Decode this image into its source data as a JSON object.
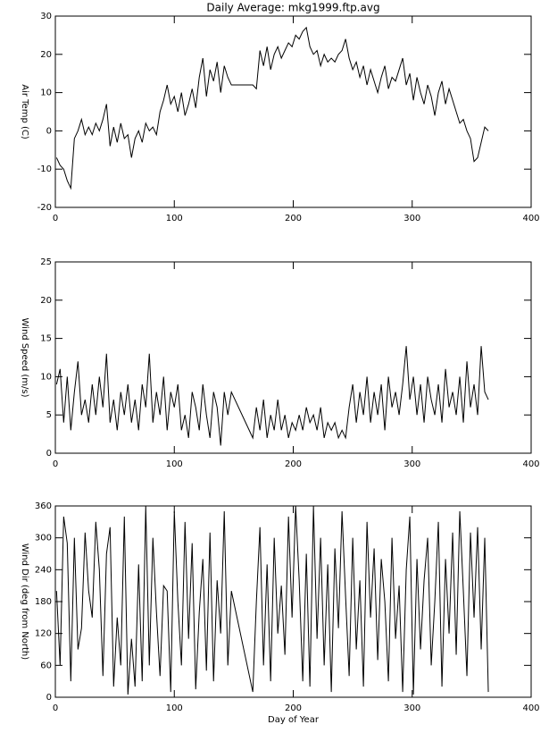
{
  "chart_data": [
    {
      "type": "line",
      "title": "Daily Average: mkg1999.ftp.avg",
      "ylabel": "Air Temp (C)",
      "color": "#000000",
      "x": [
        1,
        4,
        7,
        10,
        13,
        16,
        19,
        22,
        25,
        28,
        31,
        34,
        37,
        40,
        43,
        46,
        49,
        52,
        55,
        58,
        61,
        64,
        67,
        70,
        73,
        76,
        79,
        82,
        85,
        88,
        91,
        94,
        97,
        100,
        103,
        106,
        109,
        112,
        115,
        118,
        121,
        124,
        127,
        130,
        133,
        136,
        139,
        142,
        145,
        148,
        166,
        169,
        172,
        175,
        178,
        181,
        184,
        187,
        190,
        193,
        196,
        199,
        202,
        205,
        208,
        211,
        214,
        217,
        220,
        223,
        226,
        229,
        232,
        235,
        238,
        241,
        244,
        247,
        250,
        253,
        256,
        259,
        262,
        265,
        268,
        271,
        274,
        277,
        280,
        283,
        286,
        289,
        292,
        295,
        298,
        301,
        304,
        307,
        310,
        313,
        316,
        319,
        322,
        325,
        328,
        331,
        334,
        337,
        340,
        343,
        346,
        349,
        352,
        355,
        358,
        361,
        364
      ],
      "values": [
        -7,
        -9,
        -10,
        -13,
        -15,
        -2,
        0,
        3,
        -1,
        1,
        -1,
        2,
        0,
        3,
        7,
        -4,
        1,
        -3,
        2,
        -2,
        -1,
        -7,
        -2,
        0,
        -3,
        2,
        0,
        1,
        -1,
        5,
        8,
        12,
        7,
        9,
        5,
        10,
        4,
        7,
        11,
        6,
        14,
        19,
        9,
        16,
        13,
        18,
        10,
        17,
        14,
        12,
        12,
        11,
        21,
        17,
        22,
        16,
        20,
        22,
        19,
        21,
        23,
        22,
        25,
        24,
        26,
        27,
        22,
        20,
        21,
        17,
        20,
        18,
        19,
        18,
        20,
        21,
        24,
        19,
        16,
        18,
        14,
        17,
        12,
        16,
        13,
        10,
        14,
        17,
        11,
        14,
        13,
        16,
        19,
        12,
        15,
        8,
        14,
        10,
        7,
        12,
        9,
        4,
        10,
        13,
        7,
        11,
        8,
        5,
        2,
        3,
        0,
        -2,
        -8,
        -7,
        -3,
        1,
        0
      ],
      "xlim": [
        0,
        400
      ],
      "xticks": [
        0,
        100,
        200,
        300,
        400
      ],
      "ylim": [
        -20,
        30
      ],
      "yticks": [
        -20,
        -10,
        0,
        10,
        20,
        30
      ]
    },
    {
      "type": "line",
      "ylabel": "Wind Speed (m/s)",
      "color": "#000000",
      "x": [
        1,
        4,
        7,
        10,
        13,
        16,
        19,
        22,
        25,
        28,
        31,
        34,
        37,
        40,
        43,
        46,
        49,
        52,
        55,
        58,
        61,
        64,
        67,
        70,
        73,
        76,
        79,
        82,
        85,
        88,
        91,
        94,
        97,
        100,
        103,
        106,
        109,
        112,
        115,
        118,
        121,
        124,
        127,
        130,
        133,
        136,
        139,
        142,
        145,
        148,
        166,
        169,
        172,
        175,
        178,
        181,
        184,
        187,
        190,
        193,
        196,
        199,
        202,
        205,
        208,
        211,
        214,
        217,
        220,
        223,
        226,
        229,
        232,
        235,
        238,
        241,
        244,
        247,
        250,
        253,
        256,
        259,
        262,
        265,
        268,
        271,
        274,
        277,
        280,
        283,
        286,
        289,
        292,
        295,
        298,
        301,
        304,
        307,
        310,
        313,
        316,
        319,
        322,
        325,
        328,
        331,
        334,
        337,
        340,
        343,
        346,
        349,
        352,
        355,
        358,
        361,
        364
      ],
      "values": [
        9,
        11,
        4,
        10,
        3,
        8,
        12,
        5,
        7,
        4,
        9,
        5,
        10,
        6,
        13,
        4,
        7,
        3,
        8,
        5,
        9,
        4,
        7,
        3,
        9,
        6,
        13,
        4,
        8,
        5,
        10,
        3,
        8,
        6,
        9,
        3,
        5,
        2,
        8,
        6,
        3,
        9,
        5,
        2,
        8,
        6,
        1,
        8,
        5,
        8,
        2,
        6,
        3,
        7,
        2,
        5,
        3,
        7,
        3,
        5,
        2,
        4,
        3,
        5,
        3,
        6,
        4,
        5,
        3,
        6,
        2,
        4,
        3,
        4,
        2,
        3,
        2,
        6,
        9,
        4,
        8,
        5,
        10,
        4,
        8,
        5,
        9,
        3,
        10,
        6,
        8,
        5,
        9,
        14,
        7,
        10,
        5,
        9,
        4,
        10,
        7,
        5,
        9,
        4,
        11,
        6,
        8,
        5,
        10,
        4,
        12,
        6,
        9,
        5,
        14,
        8,
        7
      ],
      "xlim": [
        0,
        400
      ],
      "xticks": [
        0,
        100,
        200,
        300,
        400
      ],
      "ylim": [
        0,
        25
      ],
      "yticks": [
        0,
        5,
        10,
        15,
        20,
        25
      ]
    },
    {
      "type": "line",
      "ylabel": "Wind Dir (deg from North)",
      "xlabel": "Day of Year",
      "color": "#000000",
      "x": [
        1,
        4,
        7,
        10,
        13,
        16,
        19,
        22,
        25,
        28,
        31,
        34,
        37,
        40,
        43,
        46,
        49,
        52,
        55,
        58,
        61,
        64,
        67,
        70,
        73,
        76,
        79,
        82,
        85,
        88,
        91,
        94,
        97,
        100,
        103,
        106,
        109,
        112,
        115,
        118,
        121,
        124,
        127,
        130,
        133,
        136,
        139,
        142,
        145,
        148,
        166,
        169,
        172,
        175,
        178,
        181,
        184,
        187,
        190,
        193,
        196,
        199,
        202,
        205,
        208,
        211,
        214,
        217,
        220,
        223,
        226,
        229,
        232,
        235,
        238,
        241,
        244,
        247,
        250,
        253,
        256,
        259,
        262,
        265,
        268,
        271,
        274,
        277,
        280,
        283,
        286,
        289,
        292,
        295,
        298,
        301,
        304,
        307,
        310,
        313,
        316,
        319,
        322,
        325,
        328,
        331,
        334,
        337,
        340,
        343,
        346,
        349,
        352,
        355,
        358,
        361,
        364
      ],
      "values": [
        200,
        60,
        340,
        290,
        30,
        300,
        90,
        130,
        310,
        200,
        150,
        330,
        240,
        40,
        270,
        320,
        20,
        150,
        60,
        340,
        5,
        110,
        20,
        250,
        30,
        360,
        60,
        300,
        160,
        40,
        210,
        200,
        10,
        350,
        180,
        60,
        330,
        110,
        290,
        15,
        160,
        260,
        50,
        310,
        30,
        220,
        120,
        350,
        60,
        200,
        10,
        180,
        320,
        60,
        250,
        30,
        300,
        120,
        210,
        80,
        340,
        150,
        360,
        220,
        30,
        270,
        20,
        360,
        110,
        300,
        60,
        250,
        10,
        280,
        130,
        350,
        190,
        40,
        300,
        90,
        220,
        20,
        330,
        150,
        280,
        70,
        260,
        180,
        30,
        300,
        110,
        210,
        10,
        240,
        340,
        5,
        260,
        90,
        220,
        300,
        60,
        180,
        330,
        20,
        260,
        120,
        310,
        80,
        350,
        200,
        40,
        310,
        150,
        320,
        90,
        300,
        10
      ],
      "xlim": [
        0,
        400
      ],
      "xticks": [
        0,
        100,
        200,
        300,
        400
      ],
      "ylim": [
        0,
        360
      ],
      "yticks": [
        0,
        60,
        120,
        180,
        240,
        300,
        360
      ]
    }
  ]
}
